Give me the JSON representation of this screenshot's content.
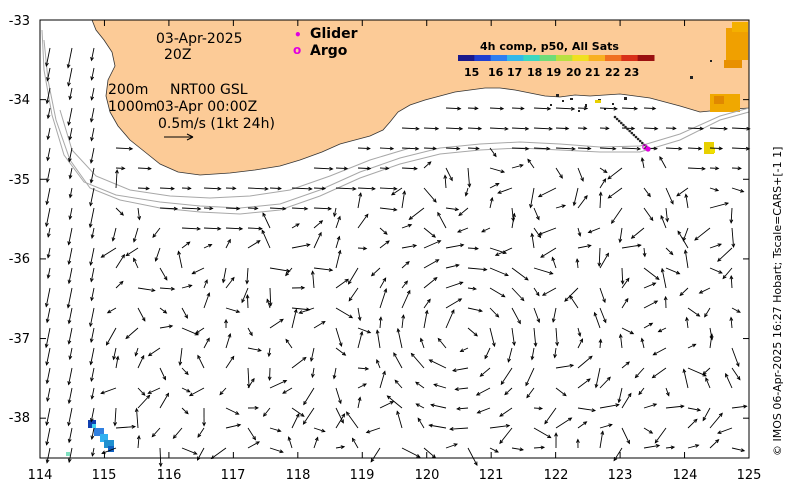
{
  "map": {
    "date": "03-Apr-2025",
    "time": "20Z",
    "depth_200": "200m",
    "depth_1000": "1000m",
    "product": "NRT00 GSL",
    "product_time": "03-Apr 00:00Z",
    "scale": "0.5m/s (1kt 24h)",
    "footer": "© IMOS 06-Apr-2025 16:27 Hobart; Tscale=CARS+[-1 1]",
    "land_color": "#FCCB97",
    "x_ticks": [
      "114",
      "115",
      "116",
      "117",
      "118",
      "119",
      "120",
      "121",
      "122",
      "123",
      "124",
      "125"
    ],
    "y_ticks": [
      "-33",
      "-34",
      "-35",
      "-36",
      "-37",
      "-38"
    ]
  },
  "legend": {
    "glider_label": "Glider",
    "argo_label": "Argo",
    "glider_symbol": "•",
    "argo_symbol": "o",
    "marker_color": "#E000E0"
  },
  "colorbar": {
    "title": "4h comp, p50, All Sats",
    "ticks": [
      "15",
      "16",
      "17",
      "18",
      "19",
      "20",
      "21",
      "22",
      "23"
    ]
  }
}
